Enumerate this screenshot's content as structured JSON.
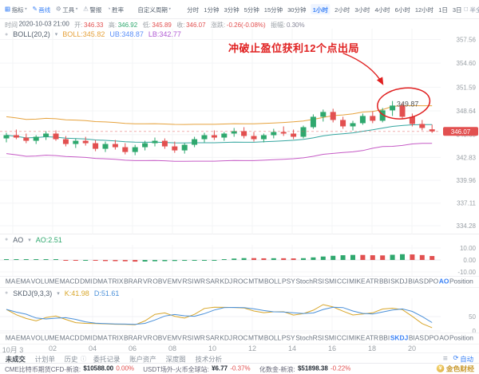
{
  "toolbar": {
    "tools": [
      {
        "label": "指标",
        "icon": "▦",
        "icon_name": "indicator-icon",
        "caret": "▾"
      },
      {
        "label": "画线",
        "icon": "✎",
        "icon_name": "draw-line-icon",
        "caret": "",
        "active": true
      },
      {
        "label": "工具",
        "icon": "⚙",
        "icon_name": "tools-icon",
        "caret": "▾"
      },
      {
        "label": "警报",
        "icon": "⚠",
        "icon_name": "alert-icon",
        "caret": ""
      },
      {
        "label": "胜率",
        "icon": "◔",
        "icon_name": "winrate-icon",
        "caret": ""
      }
    ],
    "custom_period_label": "自定义周期",
    "custom_period_caret": "▾",
    "periods": [
      "分时",
      "1分钟",
      "3分钟",
      "5分钟",
      "15分钟",
      "30分钟",
      "1小时",
      "2小时",
      "3小时",
      "4小时",
      "6小时",
      "12小时",
      "1日",
      "3日"
    ],
    "active_period": "1小时",
    "screen_toggle": "半全屏"
  },
  "ohlc_bar": {
    "time_label": "时间",
    "time_value": "2020-10-03 21:00",
    "fields": [
      {
        "label": "开:",
        "value": "346.33",
        "tone": "down"
      },
      {
        "label": "高:",
        "value": "346.92",
        "tone": "up"
      },
      {
        "label": "低:",
        "value": "345.89",
        "tone": "down"
      },
      {
        "label": "收:",
        "value": "346.07",
        "tone": "down"
      },
      {
        "label": "涨跌:",
        "value": "-0.26(-0.08%)",
        "tone": "down"
      },
      {
        "label": "振幅:",
        "value": "0.30%",
        "tone": "flat"
      }
    ]
  },
  "boll_header": {
    "name": "BOLL(20,2)",
    "caret": "▾",
    "boll": "BOLL:345.82",
    "ub": "UB:348.87",
    "lb": "LB:342.77"
  },
  "annotation": {
    "text": "冲破止盈位获利12个点出局",
    "price_label": "349.87"
  },
  "chart_data": {
    "type": "candlestick",
    "period": "1小时",
    "price_axis_ticks": [
      "357.56",
      "354.60",
      "351.59",
      "348.64",
      "345.68",
      "342.83",
      "339.96",
      "337.11",
      "334.28"
    ],
    "last_price": "346.07",
    "time_ticks": [
      "10月 3",
      "02",
      "04",
      "06",
      "08",
      "10",
      "12",
      "14",
      "16",
      "18",
      "20"
    ],
    "candles_ohlc": [
      [
        345.2,
        345.9,
        344.7,
        345.6
      ],
      [
        345.6,
        346.3,
        345.1,
        345.3
      ],
      [
        345.3,
        345.8,
        344.6,
        344.9
      ],
      [
        344.9,
        345.6,
        344.5,
        345.4
      ],
      [
        345.4,
        346.1,
        345.0,
        345.8
      ],
      [
        345.8,
        346.2,
        344.9,
        345.1
      ],
      [
        345.1,
        345.5,
        344.2,
        344.5
      ],
      [
        344.5,
        345.2,
        344.0,
        344.9
      ],
      [
        344.9,
        345.4,
        344.3,
        344.6
      ],
      [
        344.6,
        345.0,
        343.6,
        343.9
      ],
      [
        343.9,
        344.8,
        343.5,
        344.5
      ],
      [
        344.5,
        345.0,
        343.8,
        344.1
      ],
      [
        344.1,
        344.6,
        343.2,
        343.5
      ],
      [
        343.5,
        344.4,
        343.1,
        344.1
      ],
      [
        344.1,
        344.9,
        343.7,
        344.6
      ],
      [
        344.6,
        345.3,
        344.2,
        344.9
      ],
      [
        344.9,
        345.2,
        343.9,
        344.2
      ],
      [
        344.2,
        344.8,
        343.4,
        343.7
      ],
      [
        343.7,
        344.6,
        343.3,
        344.4
      ],
      [
        344.4,
        345.4,
        344.1,
        345.1
      ],
      [
        345.1,
        345.9,
        344.7,
        345.6
      ],
      [
        345.6,
        346.2,
        345.0,
        345.3
      ],
      [
        345.3,
        346.0,
        344.9,
        345.8
      ],
      [
        345.8,
        346.5,
        345.4,
        346.1
      ],
      [
        346.1,
        346.6,
        345.2,
        345.5
      ],
      [
        345.5,
        346.0,
        344.8,
        345.1
      ],
      [
        345.1,
        345.8,
        344.7,
        345.6
      ],
      [
        345.6,
        346.4,
        345.2,
        346.0
      ],
      [
        346.0,
        346.7,
        345.5,
        345.8
      ],
      [
        345.8,
        346.3,
        345.1,
        345.4
      ],
      [
        345.4,
        346.8,
        345.2,
        346.6
      ],
      [
        346.6,
        348.2,
        346.4,
        347.9
      ],
      [
        347.9,
        348.8,
        347.3,
        348.5
      ],
      [
        348.5,
        348.9,
        347.2,
        347.5
      ],
      [
        347.5,
        347.9,
        346.4,
        346.7
      ],
      [
        346.7,
        347.4,
        346.2,
        347.1
      ],
      [
        347.1,
        348.3,
        346.9,
        348.0
      ],
      [
        348.0,
        348.6,
        347.1,
        347.4
      ],
      [
        347.4,
        349.0,
        347.2,
        348.7
      ],
      [
        348.7,
        349.87,
        348.0,
        349.3
      ],
      [
        349.3,
        349.6,
        347.6,
        347.9
      ],
      [
        347.9,
        348.3,
        346.7,
        347.0
      ],
      [
        347.0,
        347.5,
        346.2,
        346.5
      ],
      [
        346.33,
        346.92,
        345.89,
        346.07
      ]
    ],
    "overlays": {
      "name": "BOLL",
      "window": 20,
      "deviation": 2
    },
    "ao": {
      "label": "AO",
      "caret": "▾",
      "current": "AO:2.51",
      "axis_ticks": [
        "10.00",
        "0.00",
        "-10.00"
      ]
    },
    "skdj": {
      "label": "SKDJ(9,3,3)",
      "caret": "▾",
      "k": "K:41.98",
      "d": "D:51.61",
      "axis_ticks": [
        "50",
        "0"
      ]
    }
  },
  "indicator_tabs": {
    "items": [
      "MA",
      "EMA",
      "VOLUME",
      "MACD",
      "DMI",
      "DMA",
      "TRIX",
      "BRAR",
      "VR",
      "OBV",
      "EMV",
      "RSI",
      "WR",
      "SAR",
      "KDJ",
      "ROC",
      "MTM",
      "BOLL",
      "PSY",
      "StochRSI",
      "SMI",
      "CCI",
      "MIKE",
      "ATR",
      "BBI",
      "SKDJ",
      "BIAS",
      "DPO",
      "AO",
      "Position"
    ],
    "active_row1": "AO",
    "active_row2": "SKDJ"
  },
  "bottom_tabs": {
    "items": [
      "未成交",
      "计划单",
      "历史",
      "委托记录",
      "账户资产",
      "深度图",
      "技术分析"
    ],
    "auto_label": "自动"
  },
  "ticker": {
    "items": [
      {
        "name": "CME比特币期货CFD-新浪:",
        "price": "$10588.00",
        "change": "0.00%"
      },
      {
        "name": "USDT场外-火币全球站:",
        "price": "¥6.77",
        "change": "-0.37%"
      },
      {
        "name": "化数金-新浪:",
        "price": "$51898.38",
        "change": "-0.22%"
      }
    ],
    "brand": "金色财经"
  },
  "colors": {
    "up": "#2fa86e",
    "down": "#e25050",
    "accent": "#3b82f6",
    "annotation": "#e02020",
    "boll_ub_line": "#e6a23c",
    "boll_mid_line": "#35a6a0",
    "boll_lb_line": "#c65bc6",
    "k_line": "#d8a62a",
    "d_line": "#4a90d9",
    "brand_gold": "#c9992e"
  }
}
